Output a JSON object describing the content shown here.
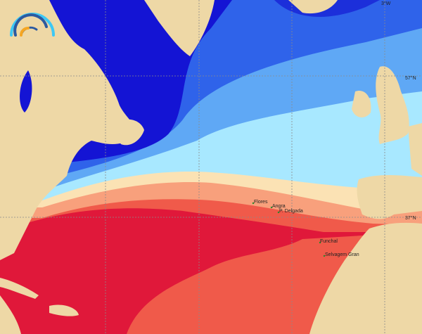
{
  "map": {
    "type": "sea-surface-temperature",
    "colors": {
      "land": "#EED8A6",
      "deep_cold": "#1414D4",
      "cold": "#2F63EA",
      "cool": "#5FA8F5",
      "mild": "#A8E8FF",
      "transition": "#FBE2B4",
      "warm": "#F8A07C",
      "hot": "#F05A4A",
      "hottest": "#E0183A"
    },
    "grid_labels": {
      "lon_3w": "3°W",
      "lat_57n": "57°N",
      "lat_37n": "37°N"
    },
    "places": [
      {
        "name": "Flores"
      },
      {
        "name": "Angra"
      },
      {
        "name": "P. Delgada"
      },
      {
        "name": "Funchal"
      },
      {
        "name": "Selvagem Gran"
      }
    ],
    "logo": {
      "icon": "rainbow-arcs-logo",
      "colors": [
        "#3EC8F4",
        "#2C5AA0",
        "#F5A623"
      ]
    }
  }
}
